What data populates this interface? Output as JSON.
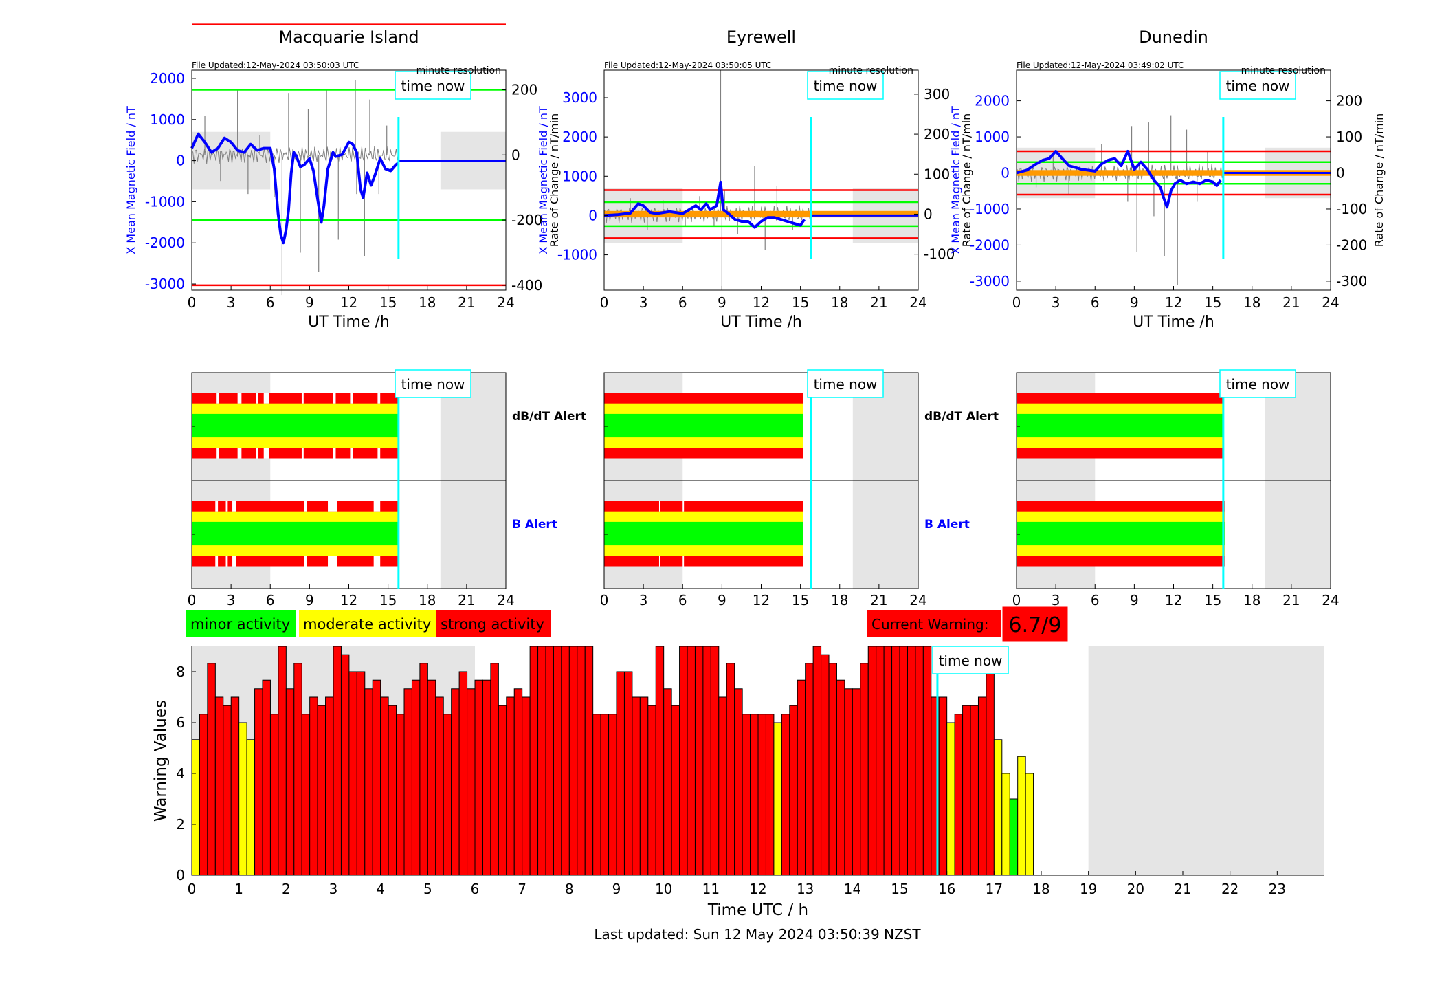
{
  "colors": {
    "minor": "#00ff00",
    "moderate": "#ffff00",
    "strong": "#ff0000",
    "mean_field": "#0000ff",
    "rate": "#808080",
    "time_now": "#00ffff",
    "night": "#e5e5e5",
    "warning_red": "#ff0000"
  },
  "time_now_label": "time now",
  "legend": {
    "minor": "minor activity",
    "moderate": "moderate activity",
    "strong": "strong activity"
  },
  "current_warning": {
    "label": "Current Warning:",
    "value": "6.7/9"
  },
  "footer": {
    "last_updated": "Last updated: Sun 12 May 2024 03:50:39 NZST"
  },
  "alert_labels": {
    "dbdt": "dB/dT Alert",
    "b": "B Alert"
  },
  "stations": [
    {
      "name": "Macquarie Island",
      "file_updated": "File Updated:12-May-2024 03:50:03 UTC",
      "resolution": "minute resolution",
      "ylabel_left": "X Mean Magnetic Field / nT",
      "ylabel_right": "Rate of Change / nT/min",
      "xlabel": "UT Time /h",
      "left_ticks": [
        2000,
        1000,
        0,
        -1000,
        -2000,
        -3000
      ],
      "left_range": [
        -3150,
        2200
      ],
      "right_ticks": [
        200,
        0,
        -200,
        -400
      ],
      "right_range": [
        -415,
        260
      ],
      "x_ticks": [
        0,
        3,
        6,
        9,
        12,
        15,
        18,
        21,
        24
      ],
      "time_now_h": 15.8,
      "night_ranges": [
        [
          0,
          6
        ],
        [
          19,
          24
        ]
      ],
      "night_band": [
        -700,
        700
      ],
      "thresholds": [
        {
          "value": 400,
          "color": "#ff0000"
        },
        {
          "value": -400,
          "color": "#ff0000"
        },
        {
          "value": 200,
          "color": "#00ff00"
        },
        {
          "value": -200,
          "color": "#00ff00"
        }
      ],
      "mean_field": [
        [
          0,
          300
        ],
        [
          0.5,
          650
        ],
        [
          1,
          450
        ],
        [
          1.5,
          200
        ],
        [
          2,
          300
        ],
        [
          2.5,
          550
        ],
        [
          3,
          450
        ],
        [
          3.5,
          250
        ],
        [
          4,
          200
        ],
        [
          4.5,
          400
        ],
        [
          5,
          250
        ],
        [
          5.5,
          300
        ],
        [
          6,
          300
        ],
        [
          6.3,
          -200
        ],
        [
          6.6,
          -1300
        ],
        [
          6.8,
          -1800
        ],
        [
          7,
          -2000
        ],
        [
          7.2,
          -1700
        ],
        [
          7.4,
          -1200
        ],
        [
          7.6,
          -300
        ],
        [
          7.8,
          200
        ],
        [
          8,
          100
        ],
        [
          8.3,
          -150
        ],
        [
          8.6,
          -100
        ],
        [
          9,
          50
        ],
        [
          9.3,
          -250
        ],
        [
          9.6,
          -900
        ],
        [
          9.9,
          -1500
        ],
        [
          10.1,
          -1100
        ],
        [
          10.4,
          -200
        ],
        [
          10.8,
          200
        ],
        [
          11,
          100
        ],
        [
          11.5,
          150
        ],
        [
          12,
          450
        ],
        [
          12.3,
          400
        ],
        [
          12.6,
          200
        ],
        [
          12.9,
          -700
        ],
        [
          13.1,
          -900
        ],
        [
          13.4,
          -300
        ],
        [
          13.7,
          -600
        ],
        [
          14,
          -350
        ],
        [
          14.4,
          50
        ],
        [
          14.8,
          -200
        ],
        [
          15.2,
          -250
        ],
        [
          15.6,
          -100
        ],
        [
          15.8,
          -50
        ]
      ],
      "rate_spikes": [
        [
          1,
          120
        ],
        [
          2.2,
          -80
        ],
        [
          3.5,
          200
        ],
        [
          4.3,
          -120
        ],
        [
          5.2,
          60
        ],
        [
          6.3,
          -130
        ],
        [
          6.9,
          -430
        ],
        [
          7.4,
          190
        ],
        [
          8.3,
          -300
        ],
        [
          8.9,
          140
        ],
        [
          9.7,
          -360
        ],
        [
          10.3,
          200
        ],
        [
          11.2,
          -260
        ],
        [
          12.5,
          230
        ],
        [
          12.6,
          -120
        ],
        [
          13.2,
          -310
        ],
        [
          13.6,
          170
        ],
        [
          14.3,
          -120
        ],
        [
          14.9,
          90
        ]
      ]
    },
    {
      "name": "Eyrewell",
      "file_updated": "File Updated:12-May-2024 03:50:05 UTC",
      "resolution": "minute resolution",
      "ylabel_left": "X Mean Magnetic Field / nT",
      "ylabel_right": "Rate of Change / nT/min",
      "xlabel": "UT Time /h",
      "left_ticks": [
        3000,
        2000,
        1000,
        0,
        -1000
      ],
      "left_range": [
        -1900,
        3700
      ],
      "right_ticks": [
        300,
        200,
        100,
        0,
        -100
      ],
      "right_range": [
        -190,
        360
      ],
      "x_ticks": [
        0,
        3,
        6,
        9,
        12,
        15,
        18,
        21,
        24
      ],
      "time_now_h": 15.8,
      "night_ranges": [
        [
          0,
          6
        ],
        [
          19,
          24
        ]
      ],
      "night_band": [
        -700,
        700
      ],
      "thresholds": [
        {
          "value": 60,
          "color": "#ff0000"
        },
        {
          "value": -60,
          "color": "#ff0000"
        },
        {
          "value": 30,
          "color": "#00ff00"
        },
        {
          "value": -30,
          "color": "#00ff00"
        }
      ],
      "mean_field": [
        [
          0,
          0
        ],
        [
          1,
          20
        ],
        [
          2,
          60
        ],
        [
          2.6,
          300
        ],
        [
          3,
          250
        ],
        [
          3.5,
          80
        ],
        [
          4,
          50
        ],
        [
          5,
          100
        ],
        [
          6,
          50
        ],
        [
          6.5,
          150
        ],
        [
          7,
          250
        ],
        [
          7.4,
          150
        ],
        [
          7.8,
          300
        ],
        [
          8.1,
          150
        ],
        [
          8.6,
          250
        ],
        [
          8.9,
          850
        ],
        [
          9.1,
          150
        ],
        [
          9.5,
          50
        ],
        [
          10,
          -100
        ],
        [
          10.5,
          -150
        ],
        [
          11,
          -150
        ],
        [
          11.5,
          -300
        ],
        [
          12,
          -150
        ],
        [
          12.5,
          -50
        ],
        [
          13,
          -50
        ],
        [
          13.5,
          -100
        ],
        [
          14,
          -150
        ],
        [
          14.5,
          -200
        ],
        [
          15,
          -250
        ],
        [
          15.3,
          -100
        ]
      ],
      "rate_spikes": [
        [
          2,
          40
        ],
        [
          3.3,
          -40
        ],
        [
          4.5,
          35
        ],
        [
          6.2,
          -30
        ],
        [
          7.3,
          45
        ],
        [
          8.4,
          -30
        ],
        [
          8.9,
          360
        ],
        [
          9,
          -190
        ],
        [
          9.2,
          60
        ],
        [
          10.2,
          -50
        ],
        [
          11.5,
          120
        ],
        [
          12.3,
          -90
        ],
        [
          13.2,
          70
        ],
        [
          14.4,
          -40
        ]
      ]
    },
    {
      "name": "Dunedin",
      "file_updated": "File Updated:12-May-2024 03:49:02 UTC",
      "resolution": "minute resolution",
      "ylabel_left": "X Mean Magnetic Field / nT",
      "ylabel_right": "Rate of Change / nT/min",
      "xlabel": "UT Time /h",
      "left_ticks": [
        2000,
        1000,
        0,
        -1000,
        -2000,
        -3000
      ],
      "left_range": [
        -3250,
        2850
      ],
      "right_ticks": [
        200,
        100,
        0,
        -100,
        -200,
        -300
      ],
      "right_range": [
        -325,
        285
      ],
      "x_ticks": [
        0,
        3,
        6,
        9,
        12,
        15,
        18,
        21,
        24
      ],
      "time_now_h": 15.8,
      "night_ranges": [
        [
          0,
          6
        ],
        [
          19,
          24
        ]
      ],
      "night_band": [
        -700,
        700
      ],
      "thresholds": [
        {
          "value": 60,
          "color": "#ff0000"
        },
        {
          "value": -60,
          "color": "#ff0000"
        },
        {
          "value": 30,
          "color": "#00ff00"
        },
        {
          "value": -30,
          "color": "#00ff00"
        }
      ],
      "mean_field": [
        [
          0,
          0
        ],
        [
          0.8,
          80
        ],
        [
          1.5,
          250
        ],
        [
          2,
          350
        ],
        [
          2.5,
          400
        ],
        [
          3,
          600
        ],
        [
          3.5,
          400
        ],
        [
          4,
          200
        ],
        [
          5,
          100
        ],
        [
          6,
          50
        ],
        [
          6.5,
          250
        ],
        [
          7,
          350
        ],
        [
          7.5,
          400
        ],
        [
          8,
          200
        ],
        [
          8.5,
          600
        ],
        [
          9,
          100
        ],
        [
          9.5,
          300
        ],
        [
          10,
          100
        ],
        [
          10.5,
          -200
        ],
        [
          11,
          -400
        ],
        [
          11.2,
          -650
        ],
        [
          11.5,
          -950
        ],
        [
          11.8,
          -500
        ],
        [
          12.1,
          -300
        ],
        [
          12.5,
          -200
        ],
        [
          13,
          -300
        ],
        [
          13.5,
          -250
        ],
        [
          14,
          -300
        ],
        [
          14.5,
          -200
        ],
        [
          15,
          -250
        ],
        [
          15.3,
          -350
        ],
        [
          15.6,
          -200
        ]
      ],
      "rate_spikes": [
        [
          1.5,
          -40
        ],
        [
          2.8,
          50
        ],
        [
          4,
          -60
        ],
        [
          6.5,
          80
        ],
        [
          8.5,
          -80
        ],
        [
          8.8,
          130
        ],
        [
          9.2,
          -220
        ],
        [
          10.1,
          140
        ],
        [
          10.5,
          -120
        ],
        [
          11.3,
          -230
        ],
        [
          11.8,
          160
        ],
        [
          12.3,
          -310
        ],
        [
          13,
          120
        ],
        [
          13.8,
          -80
        ],
        [
          14.6,
          60
        ]
      ]
    }
  ],
  "alerts": [
    {
      "dbdt_gaps": [
        [
          1.9,
          2.05
        ],
        [
          3.5,
          3.8
        ],
        [
          4.9,
          5.05
        ],
        [
          5.5,
          5.9
        ],
        [
          8.4,
          8.55
        ],
        [
          10.8,
          11.0
        ],
        [
          12.1,
          12.3
        ],
        [
          14.2,
          14.4
        ]
      ],
      "b_gaps": [
        [
          1.8,
          2.0
        ],
        [
          2.6,
          2.75
        ],
        [
          3.1,
          3.4
        ],
        [
          8.6,
          8.8
        ],
        [
          10.4,
          11.1
        ],
        [
          13.9,
          14.4
        ]
      ]
    },
    {
      "dbdt_gaps": [],
      "b_gaps": [
        [
          4.2,
          4.28
        ],
        [
          6,
          6.1
        ]
      ]
    },
    {
      "dbdt_gaps": [],
      "b_gaps": []
    }
  ],
  "alert_ranges": [
    {
      "dbdt": [
        [
          0,
          15.8
        ]
      ],
      "b": [
        [
          0,
          15.8
        ]
      ]
    },
    {
      "dbdt": [
        [
          0,
          15.2
        ]
      ],
      "b": [
        [
          0,
          15.2
        ]
      ]
    },
    {
      "dbdt": [
        [
          0,
          15.8
        ]
      ],
      "b": [
        [
          0,
          15.9
        ]
      ]
    }
  ],
  "chart_data": {
    "type": "bar",
    "xlabel": "Time UTC / h",
    "ylabel": "Warning Values",
    "ylim": [
      0,
      9
    ],
    "xlim": [
      0,
      24
    ],
    "x_ticks": [
      0,
      1,
      2,
      3,
      4,
      5,
      6,
      7,
      8,
      9,
      10,
      11,
      12,
      13,
      14,
      15,
      16,
      17,
      18,
      19,
      20,
      21,
      22,
      23
    ],
    "y_ticks": [
      0,
      2,
      4,
      6,
      8
    ],
    "bin_hours": 0.16667,
    "time_now_h": 15.8,
    "night_ranges": [
      [
        0,
        6
      ],
      [
        19,
        24
      ]
    ],
    "values": [
      5.33,
      6.33,
      8.33,
      7.0,
      6.67,
      7.0,
      6.0,
      5.33,
      7.33,
      7.67,
      6.33,
      9.0,
      7.33,
      8.33,
      6.33,
      7.0,
      6.67,
      7.0,
      9.0,
      8.67,
      8.0,
      8.0,
      7.33,
      7.67,
      7.0,
      6.67,
      6.33,
      7.33,
      7.67,
      8.33,
      7.67,
      7.0,
      6.33,
      7.33,
      8.0,
      7.33,
      7.67,
      7.67,
      8.33,
      6.67,
      7.0,
      7.33,
      7.0,
      9.0,
      9.0,
      9.0,
      9.0,
      9.0,
      9.0,
      9.0,
      9.0,
      6.33,
      6.33,
      6.33,
      8.0,
      8.0,
      7.0,
      7.0,
      6.67,
      9.0,
      7.33,
      6.67,
      9.0,
      9.0,
      9.0,
      9.0,
      9.0,
      7.0,
      8.33,
      7.33,
      6.33,
      6.33,
      6.33,
      6.33,
      6.0,
      6.33,
      6.67,
      7.67,
      8.33,
      9.0,
      8.67,
      8.33,
      7.67,
      7.33,
      7.33,
      8.33,
      9.0,
      9.0,
      9.0,
      9.0,
      9.0,
      9.0,
      9.0,
      9.0,
      7.0,
      7.0,
      6.0,
      6.33,
      6.67,
      6.67,
      7.0,
      9.0,
      5.33,
      4.0,
      3.0,
      4.67,
      4.0
    ],
    "colors": [
      "y",
      "r",
      "r",
      "r",
      "r",
      "r",
      "y",
      "y",
      "r",
      "r",
      "r",
      "r",
      "r",
      "r",
      "r",
      "r",
      "r",
      "r",
      "r",
      "r",
      "r",
      "r",
      "r",
      "r",
      "r",
      "r",
      "r",
      "r",
      "r",
      "r",
      "r",
      "r",
      "r",
      "r",
      "r",
      "r",
      "r",
      "r",
      "r",
      "r",
      "r",
      "r",
      "r",
      "r",
      "r",
      "r",
      "r",
      "r",
      "r",
      "r",
      "r",
      "r",
      "r",
      "r",
      "r",
      "r",
      "r",
      "r",
      "r",
      "r",
      "r",
      "r",
      "r",
      "r",
      "r",
      "r",
      "r",
      "r",
      "r",
      "r",
      "r",
      "r",
      "r",
      "r",
      "y",
      "r",
      "r",
      "r",
      "r",
      "r",
      "r",
      "r",
      "r",
      "r",
      "r",
      "r",
      "r",
      "r",
      "r",
      "r",
      "r",
      "r",
      "r",
      "r",
      "r",
      "r",
      "y",
      "r",
      "r",
      "r",
      "r",
      "r",
      "y",
      "y",
      "g",
      "y",
      "y"
    ]
  }
}
